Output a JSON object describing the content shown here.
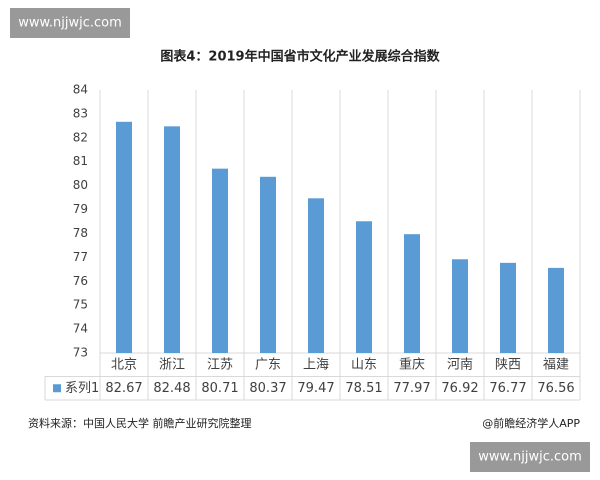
{
  "watermarks": [
    "www.njjwjc.com",
    "www.njjwjc.com"
  ],
  "chart_data": {
    "type": "bar",
    "title": "图表4：2019年中国省市文化产业发展综合指数",
    "categories": [
      "北京",
      "浙江",
      "江苏",
      "广东",
      "上海",
      "山东",
      "重庆",
      "河南",
      "陕西",
      "福建"
    ],
    "series": [
      {
        "name": "系列1",
        "color": "#5b9bd5",
        "values": [
          82.67,
          82.48,
          80.71,
          80.37,
          79.47,
          78.51,
          77.97,
          76.92,
          76.77,
          76.56
        ]
      }
    ],
    "ylim": [
      73,
      84
    ],
    "yticks": [
      73,
      74,
      75,
      76,
      77,
      78,
      79,
      80,
      81,
      82,
      83,
      84
    ],
    "grid": false,
    "source": "资料来源：中国人民大学 前瞻产业研究院整理",
    "credit": "@前瞻经济学人APP"
  }
}
